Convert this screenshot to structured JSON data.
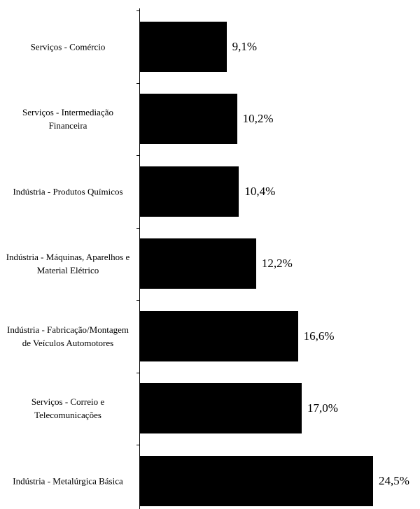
{
  "chart_data": {
    "type": "barh",
    "categories": [
      "Serviços - Comércio",
      "Serviços - Intermediação Financeira",
      "Indústria - Produtos Químicos",
      "Indústria - Máquinas, Aparelhos e Material Elétrico",
      "Indústria - Fabricação/Montagem de Veículos Automotores",
      "Serviços - Correio e Telecomunicações",
      "Indústria - Metalúrgica Básica"
    ],
    "values": [
      9.1,
      10.2,
      10.4,
      12.2,
      16.6,
      17.0,
      24.5
    ],
    "value_labels": [
      "9,1%",
      "10,2%",
      "10,4%",
      "12,2%",
      "16,6%",
      "17,0%",
      "24,5%"
    ],
    "color": "#000000"
  }
}
